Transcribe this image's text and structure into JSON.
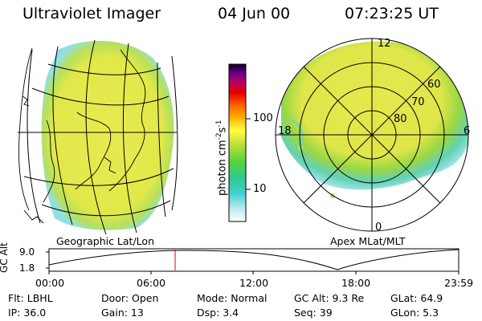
{
  "header": {
    "instrument": "Ultraviolet Imager",
    "date": "04 Jun 00",
    "time": "07:23:25 UT"
  },
  "colorbar": {
    "unit": "photon cm",
    "unit_sup1": "-2",
    "unit_mid": "s",
    "unit_sup2": "-1",
    "tick_100": "100",
    "tick_10": "10"
  },
  "map_left": {
    "label": "Geographic Lat/Lon"
  },
  "map_right": {
    "label": "Apex MLat/MLT",
    "mlt_12": "12",
    "mlt_18": "18",
    "mlt_6": "6",
    "mlt_0": "0",
    "lat_60": "60",
    "lat_70": "70",
    "lat_80": "80"
  },
  "altitude_plot": {
    "ylabel": "GC Alt",
    "y_top": "9.0",
    "y_bottom": "1.8",
    "x_ticks": [
      "00:00",
      "06:00",
      "12:00",
      "18:00",
      "23:59"
    ],
    "cursor_time_fraction": 0.3079
  },
  "footer": {
    "filter": "Flt: LBHL",
    "ip": "IP: 36.0",
    "door": "Door: Open",
    "gain": "Gain: 13",
    "mode": "Mode: Normal",
    "dsp": "Dsp:     3.4",
    "gc_alt": "GC Alt: 9.3 Re",
    "seq": "Seq: 39",
    "glat": "GLat:   64.9",
    "glon": "GLon:     5.3"
  },
  "colors": {
    "aurora_yellow": "#e4e84a",
    "aurora_green": "#8ed640",
    "aurora_cyan": "#6fd8e0",
    "cursor_red": "#e00000"
  }
}
